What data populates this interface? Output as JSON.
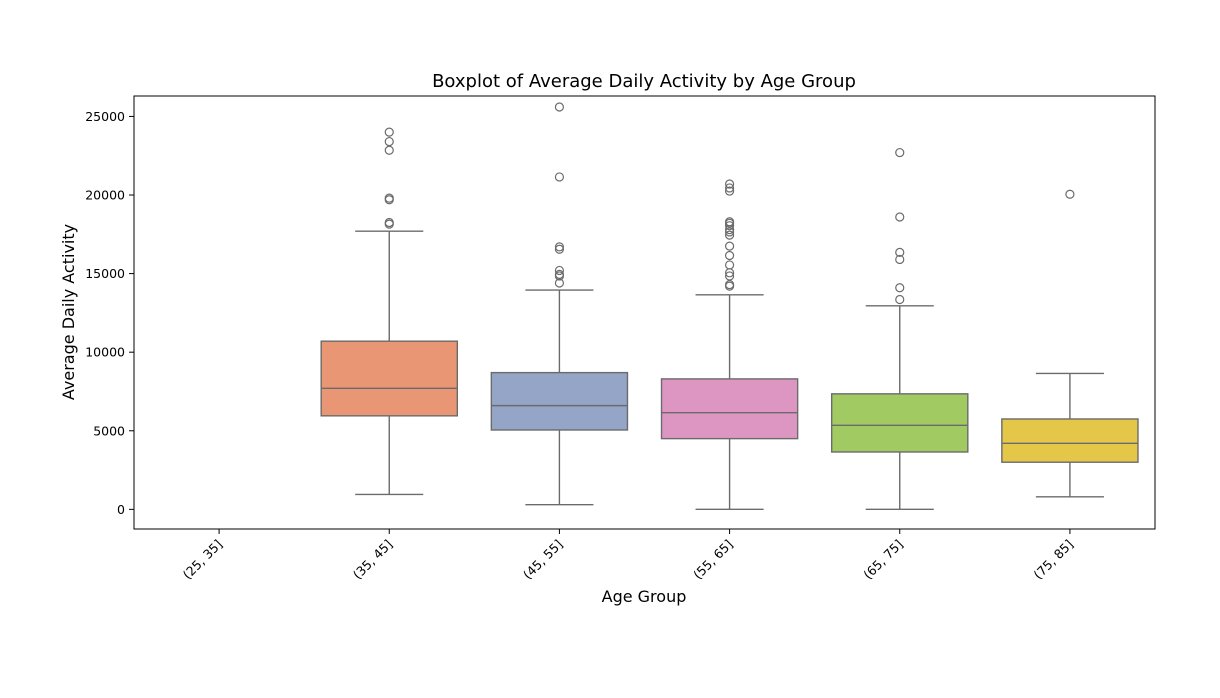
{
  "chart_data": {
    "type": "boxplot",
    "title": "Boxplot of Average Daily Activity by Age Group",
    "xlabel": "Age Group",
    "ylabel": "Average Daily Activity",
    "ylim": [
      -1250,
      26300
    ],
    "yticks": [
      0,
      5000,
      10000,
      15000,
      20000,
      25000
    ],
    "grid": false,
    "legend": "none",
    "categories": [
      "(25, 35]",
      "(35, 45]",
      "(45, 55]",
      "(55, 65]",
      "(65, 75]",
      "(75, 85]"
    ],
    "boxes": [
      {
        "category": "(25, 35]",
        "color": null
      },
      {
        "category": "(35, 45]",
        "color": "#E99675",
        "whisker_low": 950,
        "q1": 5950,
        "median": 7700,
        "q3": 10700,
        "whisker_high": 17700,
        "outliers": [
          18150,
          18250,
          19700,
          19800,
          22850,
          23400,
          24000
        ]
      },
      {
        "category": "(45, 55]",
        "color": "#94A5C7",
        "whisker_low": 300,
        "q1": 5050,
        "median": 6600,
        "q3": 8700,
        "whisker_high": 13950,
        "outliers": [
          14400,
          14850,
          14950,
          15200,
          16550,
          16700,
          21150,
          25600
        ]
      },
      {
        "category": "(55, 65]",
        "color": "#DD96C2",
        "whisker_low": 0,
        "q1": 4500,
        "median": 6150,
        "q3": 8300,
        "whisker_high": 13650,
        "outliers": [
          14200,
          14300,
          14850,
          15050,
          15550,
          16150,
          16750,
          17450,
          17650,
          17800,
          18050,
          18200,
          18300,
          20250,
          20450,
          20700
        ]
      },
      {
        "category": "(65, 75]",
        "color": "#A2CA62",
        "whisker_low": 0,
        "q1": 3650,
        "median": 5350,
        "q3": 7350,
        "whisker_high": 12950,
        "outliers": [
          13350,
          14100,
          15900,
          16350,
          18600,
          22700
        ]
      },
      {
        "category": "(75, 85]",
        "color": "#E4C749",
        "whisker_low": 800,
        "q1": 3000,
        "median": 4200,
        "q3": 5750,
        "whisker_high": 8650,
        "outliers": [
          20050
        ]
      }
    ]
  }
}
